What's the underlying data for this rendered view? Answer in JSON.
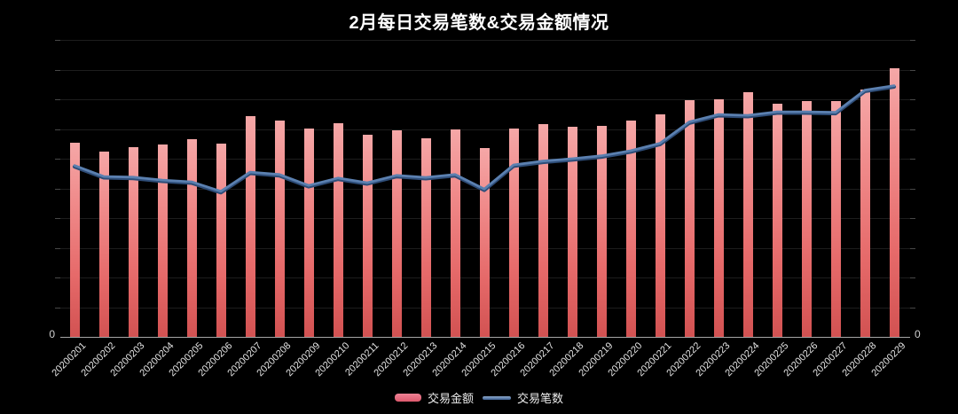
{
  "title": "2月每日交易笔数&交易金额情况",
  "axes": {
    "left_zero_label": "0",
    "right_zero_label": "0"
  },
  "legend": {
    "items": [
      {
        "label": "交易金额",
        "type": "bar",
        "color": "#e4697e"
      },
      {
        "label": "交易笔数",
        "type": "line",
        "color": "#5b80b0"
      }
    ],
    "position": "bottom-center"
  },
  "colors": {
    "background": "#000000",
    "title_text": "#ffffff",
    "bar_top": "#f5a7a7",
    "bar_bottom": "#d25252",
    "line": "#5b80b0",
    "line_shadow": "#2e4d78",
    "gridline": "#1d1d1d",
    "axis_line": "#a6a6a6",
    "axis_text": "#e2e2e2"
  },
  "chart_data": {
    "type": "bar",
    "subtype": "bar+line combo, dual unlabeled value axes",
    "title": "2月每日交易笔数&交易金额情况",
    "xlabel": "",
    "ylabel": "",
    "ylim": [
      0,
      100
    ],
    "value_note": "Value axes show only '0'; series values are estimated as percent of plot height read from pixels",
    "grid": true,
    "legend_position": "bottom",
    "categories": [
      "20200201",
      "20200202",
      "20200203",
      "20200204",
      "20200205",
      "20200206",
      "20200207",
      "20200208",
      "20200209",
      "20200210",
      "20200211",
      "20200212",
      "20200213",
      "20200214",
      "20200215",
      "20200216",
      "20200217",
      "20200218",
      "20200219",
      "20200220",
      "20200221",
      "20200222",
      "20200223",
      "20200224",
      "20200225",
      "20200226",
      "20200227",
      "20200228",
      "20200229"
    ],
    "series": [
      {
        "name": "交易金额",
        "type": "bar",
        "values": [
          65.5,
          62.5,
          64.0,
          64.9,
          66.5,
          65.0,
          74.3,
          72.8,
          70.1,
          71.9,
          68.2,
          69.5,
          66.9,
          69.9,
          63.5,
          70.1,
          71.6,
          70.9,
          71.0,
          73.0,
          75.0,
          79.6,
          80.1,
          82.3,
          78.6,
          79.4,
          79.4,
          83.4,
          90.5
        ]
      },
      {
        "name": "交易笔数",
        "type": "line",
        "values": [
          57.7,
          54.0,
          53.8,
          52.8,
          52.2,
          49.0,
          55.5,
          54.7,
          51.0,
          53.5,
          51.9,
          54.4,
          53.7,
          54.7,
          49.8,
          57.9,
          59.2,
          60.0,
          61.0,
          62.7,
          65.2,
          72.4,
          74.9,
          74.6,
          75.8,
          75.8,
          75.6,
          83.1,
          84.6
        ]
      }
    ]
  }
}
